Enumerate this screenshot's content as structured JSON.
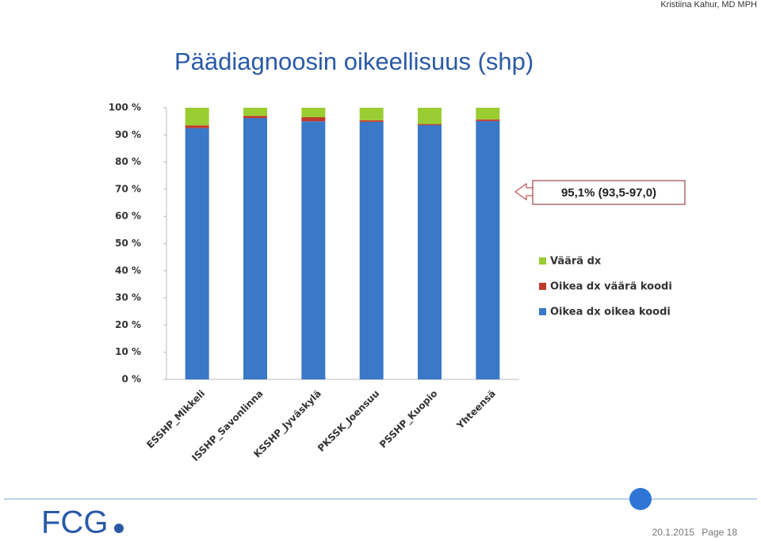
{
  "header": {
    "author": "Kristiina Kahur, MD MPH",
    "title": "Päädiagnoosin oikeellisuus (shp)"
  },
  "chart_data": {
    "type": "bar",
    "stacked": true,
    "categories": [
      "ESSHP_Mikkeli",
      "ISSHP_Savonlinna",
      "KSSHP_Jyväskylä",
      "PKSSK_Joensuu",
      "PSSHP_Kuopio",
      "Yhteensä"
    ],
    "series": [
      {
        "name": "Oikea dx oikea koodi",
        "color": "#3a78c8",
        "values": [
          92.5,
          96.2,
          95.0,
          94.8,
          93.6,
          95.1
        ]
      },
      {
        "name": "Oikea dx väärä koodi",
        "color": "#c0392b",
        "values": [
          1.0,
          0.8,
          1.5,
          0.6,
          0.4,
          0.6
        ]
      },
      {
        "name": "Väärä dx",
        "color": "#9acd32",
        "values": [
          6.5,
          3.0,
          3.5,
          4.6,
          6.0,
          4.3
        ]
      }
    ],
    "ylim": [
      0,
      100
    ],
    "yticks": [
      {
        "value": 0,
        "label": "0 %"
      },
      {
        "value": 10,
        "label": "10 %"
      },
      {
        "value": 20,
        "label": "20 %"
      },
      {
        "value": 30,
        "label": "30 %"
      },
      {
        "value": 40,
        "label": "40 %"
      },
      {
        "value": 50,
        "label": "50 %"
      },
      {
        "value": 60,
        "label": "60 %"
      },
      {
        "value": 70,
        "label": "70 %"
      },
      {
        "value": 80,
        "label": "80 %"
      },
      {
        "value": 90,
        "label": "90 %"
      },
      {
        "value": 100,
        "label": "100 %"
      }
    ],
    "legend": "right",
    "annotation": "95,1% (93,5-97,0)"
  },
  "footer": {
    "logo": "FCG",
    "date": "20.1.2015",
    "page": "Page 18"
  }
}
